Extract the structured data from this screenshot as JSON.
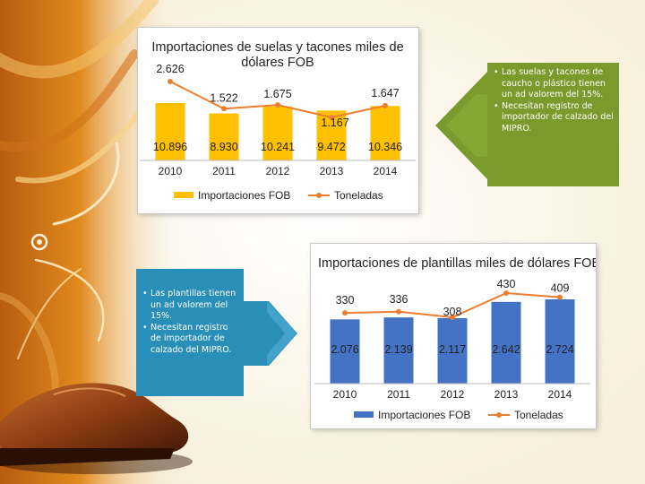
{
  "slide": {
    "colors": {
      "green_callout": "#7a9a2c",
      "blue_callout": "#2a8fb8",
      "orange_bar": "#ffc000",
      "blue_bar": "#4472c4",
      "line": "#ed7d31"
    },
    "icons": [
      "shoe-image",
      "floral-swirl-decoration",
      "arrow-left-icon",
      "arrow-right-icon"
    ]
  },
  "callout_top": {
    "bullets": [
      "Las suelas y tacones de caucho o plástico tienen un ad valorem del 15%.",
      "Necesitan registro de importador de calzado del MIPRO."
    ]
  },
  "callout_bottom": {
    "bullets": [
      "Las plantillas tienen un ad valorem del 15%.",
      "Necesitan registro de importador de calzado del MIPRO."
    ]
  },
  "chart_data": [
    {
      "type": "bar",
      "title": "Importaciones de suelas y tacones miles de dólares FOB",
      "categories": [
        "2010",
        "2011",
        "2012",
        "2013",
        "2014"
      ],
      "series": [
        {
          "name": "Importaciones FOB",
          "kind": "bar",
          "values": [
            10.896,
            8.93,
            10.241,
            9.472,
            10.346
          ],
          "labels": [
            "10.896",
            "8.930",
            "10.241",
            "9.472",
            "10.346"
          ]
        },
        {
          "name": "Toneladas",
          "kind": "line",
          "values": [
            2.626,
            1.522,
            1.675,
            1.167,
            1.647
          ],
          "labels": [
            "2.626",
            "1.522",
            "1.675",
            "1.167",
            "1.647"
          ]
        }
      ],
      "legend": "bottom",
      "grid": false
    },
    {
      "type": "bar",
      "title": "Importaciones de plantillas miles de dólares FOB",
      "categories": [
        "2010",
        "2011",
        "2012",
        "2013",
        "2014"
      ],
      "series": [
        {
          "name": "Importaciones FOB",
          "kind": "bar",
          "values": [
            2.076,
            2.139,
            2.117,
            2.642,
            2.724
          ],
          "labels": [
            "2.076",
            "2.139",
            "2.117",
            "2.642",
            "2.724"
          ]
        },
        {
          "name": "Toneladas",
          "kind": "line",
          "values": [
            330,
            336,
            308,
            430,
            409
          ],
          "labels": [
            "330",
            "336",
            "308",
            "430",
            "409"
          ]
        }
      ],
      "legend": "bottom",
      "grid": false
    }
  ]
}
